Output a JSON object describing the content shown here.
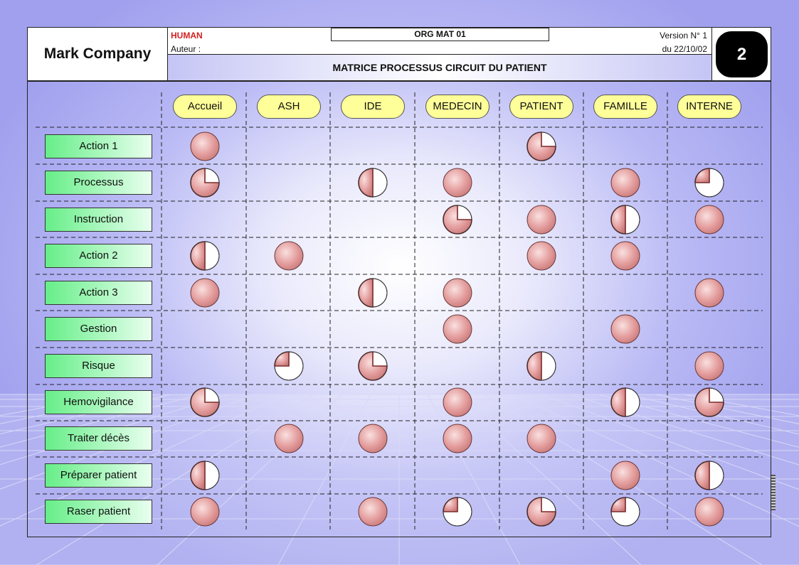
{
  "header": {
    "company": "Mark Company",
    "human": "HUMAN",
    "auteur": "Auteur :",
    "org": "ORG MAT 01",
    "version": "Version N° 1",
    "date": "du 22/10/02",
    "title": "MATRICE PROCESSUS CIRCUIT DU PATIENT",
    "page": "2"
  },
  "columns": [
    "Accueil",
    "ASH",
    "IDE",
    "MEDECIN",
    "PATIENT",
    "FAMILLE",
    "INTERNE"
  ],
  "rows": [
    {
      "label": "Action 1",
      "cells": [
        1,
        0,
        0,
        0,
        0.75,
        0,
        0
      ]
    },
    {
      "label": "Processus",
      "cells": [
        0.75,
        0,
        0.5,
        1,
        0,
        1,
        0.25
      ]
    },
    {
      "label": "Instruction",
      "cells": [
        0,
        0,
        0,
        0.75,
        1,
        0.5,
        1
      ]
    },
    {
      "label": "Action 2",
      "cells": [
        0.5,
        1,
        0,
        0,
        1,
        1,
        0
      ]
    },
    {
      "label": "Action 3",
      "cells": [
        1,
        0,
        0.5,
        1,
        0,
        0,
        1
      ]
    },
    {
      "label": "Gestion",
      "cells": [
        0,
        0,
        0,
        1,
        0,
        1,
        0
      ]
    },
    {
      "label": "Risque",
      "cells": [
        0,
        0.25,
        0.75,
        0,
        0.5,
        0,
        1
      ]
    },
    {
      "label": "Hemovigilance",
      "cells": [
        0.75,
        0,
        0,
        1,
        0,
        0.5,
        0.75
      ]
    },
    {
      "label": "Traiter décès",
      "cells": [
        0,
        1,
        1,
        1,
        1,
        0,
        0
      ]
    },
    {
      "label": "Préparer patient",
      "cells": [
        0.5,
        0,
        0,
        0,
        0,
        1,
        0.5
      ]
    },
    {
      "label": "Raser patient",
      "cells": [
        1,
        0,
        1,
        0.25,
        0.75,
        0.25,
        1
      ]
    }
  ],
  "colors": {
    "circle_fill": "#e39b9b",
    "circle_edge": "#7a2a2a",
    "column_header_fill": "#ffff99",
    "row_label_fill": "#66ee88"
  }
}
